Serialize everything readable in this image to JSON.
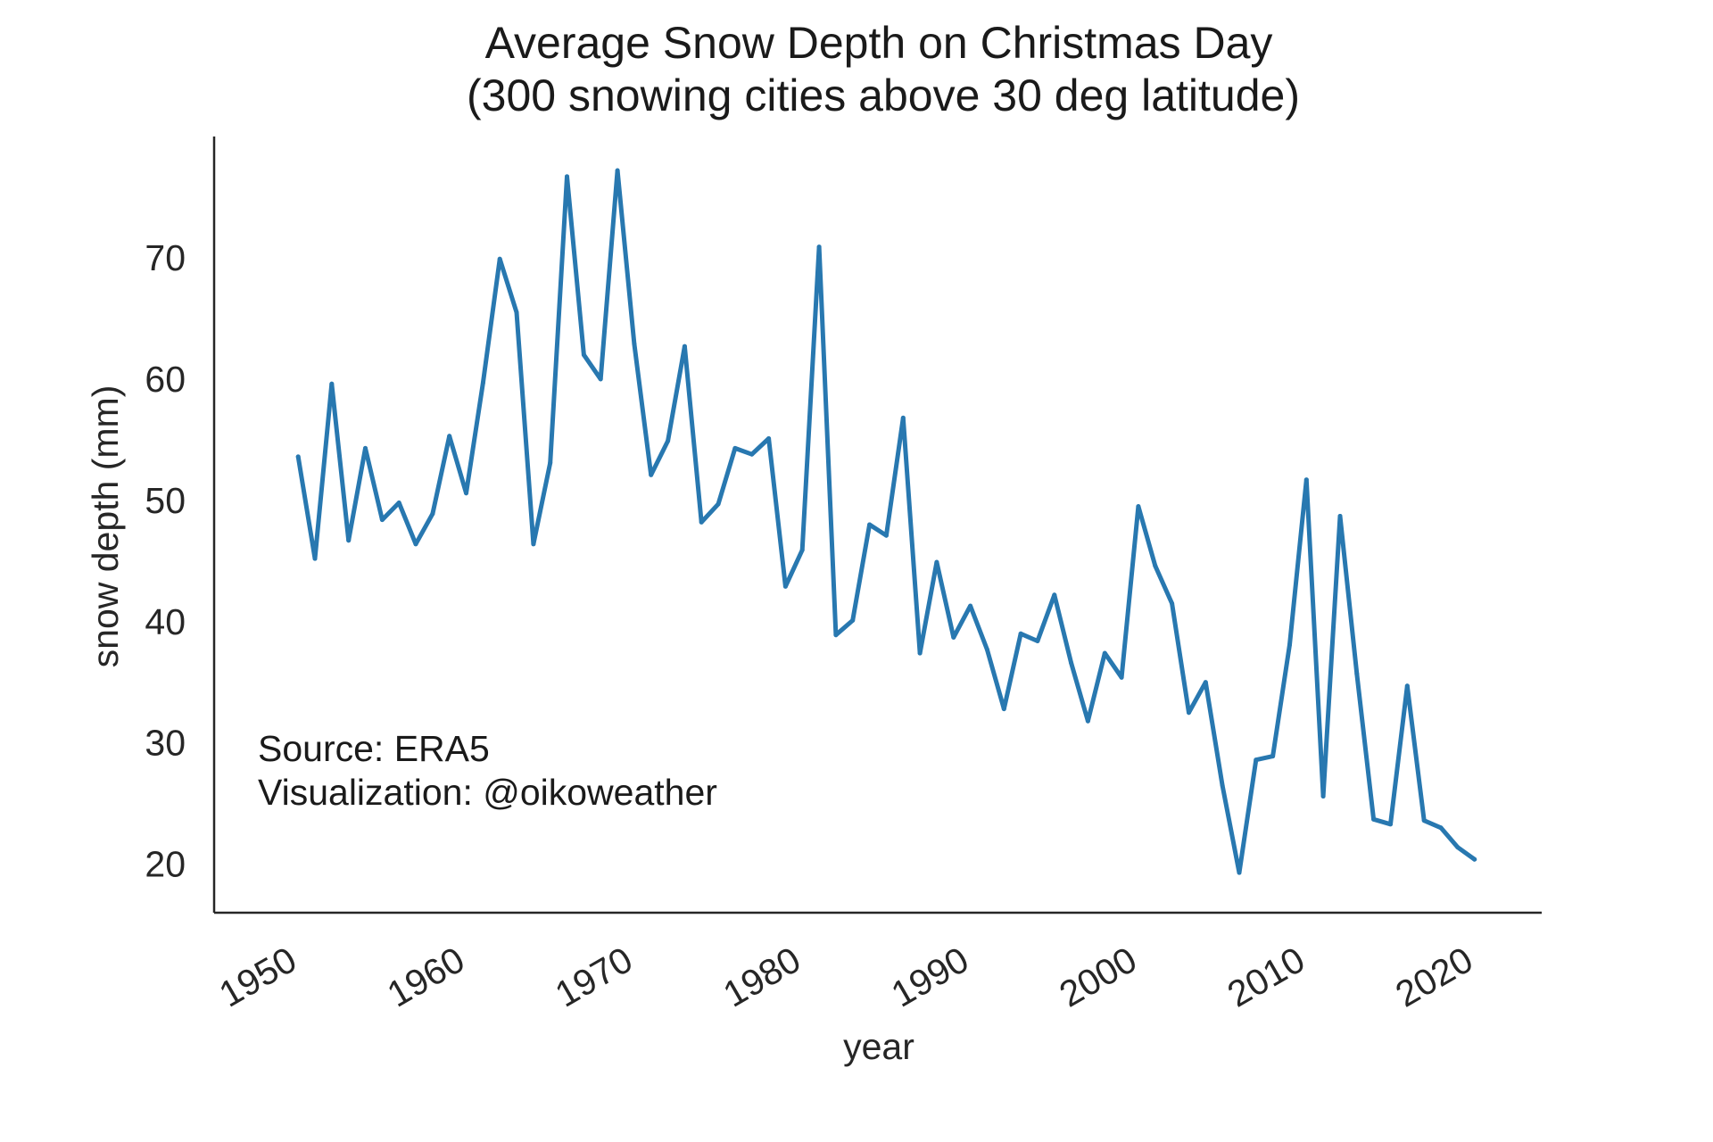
{
  "chart_data": {
    "type": "line",
    "title": "Average Snow Depth on Christmas Day",
    "subtitle": "(300 snowing cities above 30 deg latitude)",
    "xlabel": "year",
    "ylabel": "snow depth (mm)",
    "x_ticks": [
      "1950",
      "1960",
      "1970",
      "1980",
      "1990",
      "2000",
      "2010",
      "2020"
    ],
    "y_ticks": [
      "20",
      "30",
      "40",
      "50",
      "60",
      "70"
    ],
    "xlim": [
      1946,
      2025
    ],
    "ylim": [
      16,
      80
    ],
    "grid": false,
    "line_color": "#2878b0",
    "annotations": [
      "Source: ERA5",
      "Visualization: @oikoweather"
    ],
    "series": [
      {
        "name": "snow depth",
        "x": [
          1951,
          1952,
          1953,
          1954,
          1955,
          1956,
          1957,
          1958,
          1959,
          1960,
          1961,
          1962,
          1963,
          1964,
          1965,
          1966,
          1967,
          1968,
          1969,
          1970,
          1971,
          1972,
          1973,
          1974,
          1975,
          1976,
          1977,
          1978,
          1979,
          1980,
          1981,
          1982,
          1983,
          1984,
          1985,
          1986,
          1987,
          1988,
          1989,
          1990,
          1991,
          1992,
          1993,
          1994,
          1995,
          1996,
          1997,
          1998,
          1999,
          2000,
          2001,
          2002,
          2003,
          2004,
          2005,
          2006,
          2007,
          2008,
          2009,
          2010,
          2011,
          2012,
          2013,
          2014,
          2015,
          2016,
          2017,
          2018,
          2019,
          2020,
          2021
        ],
        "values": [
          53.6,
          45.2,
          59.6,
          46.7,
          54.3,
          48.4,
          49.8,
          46.4,
          48.9,
          55.3,
          50.6,
          59.7,
          69.9,
          65.5,
          46.4,
          53.1,
          76.7,
          62.0,
          60.0,
          77.2,
          62.9,
          52.1,
          54.9,
          62.7,
          48.2,
          49.7,
          54.3,
          53.8,
          55.1,
          42.9,
          45.9,
          70.9,
          38.9,
          40.1,
          48.0,
          47.1,
          56.8,
          37.4,
          44.9,
          38.7,
          41.3,
          37.7,
          32.8,
          39.0,
          38.4,
          42.2,
          36.6,
          31.8,
          37.4,
          35.4,
          49.5,
          44.6,
          41.5,
          32.5,
          35.0,
          26.5,
          19.3,
          28.6,
          28.9,
          38.1,
          51.7,
          25.6,
          48.7,
          35.7,
          23.7,
          23.3,
          34.7,
          23.6,
          23.0,
          21.4,
          20.4
        ]
      }
    ]
  }
}
